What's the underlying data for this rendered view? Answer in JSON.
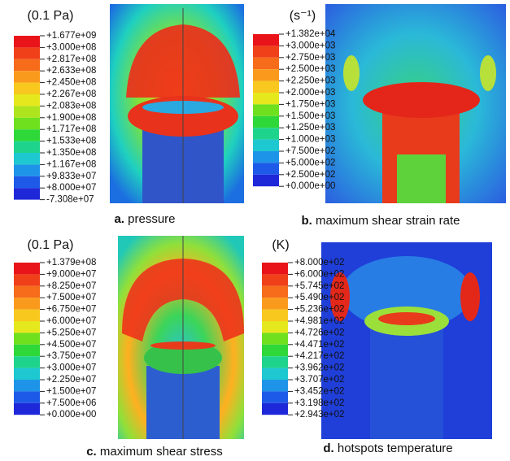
{
  "panels": [
    {
      "unit": "(0.1 Pa)",
      "caption": {
        "label": "a.",
        "text": "pressure"
      },
      "legend": [
        "+1.677e+09",
        "+3.000e+08",
        "+2.817e+08",
        "+2.633e+08",
        "+2.450e+08",
        "+2.267e+08",
        "+2.083e+08",
        "+1.900e+08",
        "+1.717e+08",
        "+1.533e+08",
        "+1.350e+08",
        "+1.167e+08",
        "+9.833e+07",
        "+8.000e+07",
        "-7.308e+07"
      ]
    },
    {
      "unit": "(s⁻¹)",
      "caption": {
        "label": "b.",
        "text": "maximum shear strain rate"
      },
      "legend": [
        "+1.382e+04",
        "+3.000e+03",
        "+2.750e+03",
        "+2.500e+03",
        "+2.250e+03",
        "+2.000e+03",
        "+1.750e+03",
        "+1.500e+03",
        "+1.250e+03",
        "+1.000e+03",
        "+7.500e+02",
        "+5.000e+02",
        "+2.500e+02",
        "+0.000e+00"
      ]
    },
    {
      "unit": "(0.1 Pa)",
      "caption": {
        "label": "c.",
        "text": "maximum shear stress"
      },
      "legend": [
        "+1.379e+08",
        "+9.000e+07",
        "+8.250e+07",
        "+7.500e+07",
        "+6.750e+07",
        "+6.000e+07",
        "+5.250e+07",
        "+4.500e+07",
        "+3.750e+07",
        "+3.000e+07",
        "+2.250e+07",
        "+1.500e+07",
        "+7.500e+06",
        "+0.000e+00"
      ]
    },
    {
      "unit": "(K)",
      "caption": {
        "label": "d.",
        "text": "hotspots temperature"
      },
      "legend": [
        "+8.000e+02",
        "+6.000e+02",
        "+5.745e+02",
        "+5.490e+02",
        "+5.236e+02",
        "+4.981e+02",
        "+4.726e+02",
        "+4.471e+02",
        "+4.217e+02",
        "+3.962e+02",
        "+3.707e+02",
        "+3.452e+02",
        "+3.198e+02",
        "+2.943e+02"
      ]
    }
  ]
}
